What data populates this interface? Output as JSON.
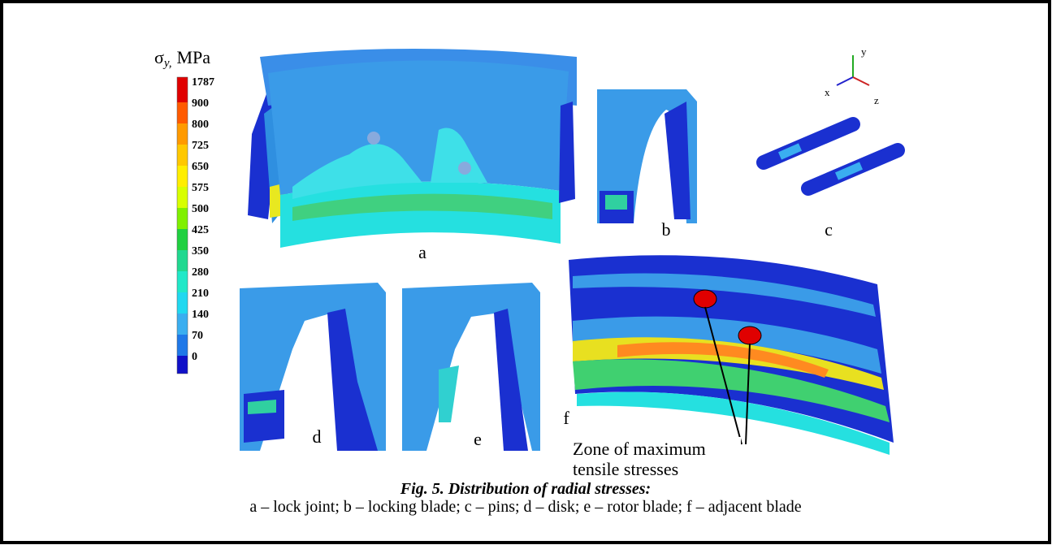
{
  "figure": {
    "legend": {
      "symbol": "σ",
      "subscript": "y,",
      "unit": "MPa",
      "labels": [
        "1787",
        "900",
        "800",
        "725",
        "650",
        "575",
        "500",
        "425",
        "350",
        "280",
        "210",
        "140",
        "70",
        "0"
      ],
      "colors": [
        "#e00000",
        "#ff5a00",
        "#ff9a00",
        "#ffc800",
        "#ffee00",
        "#d8ff00",
        "#80f000",
        "#20d040",
        "#20d890",
        "#20e8c8",
        "#20d8f0",
        "#3aaef0",
        "#1f78e8",
        "#1010c8"
      ]
    },
    "panels": {
      "a": "a",
      "b": "b",
      "c": "c",
      "d": "d",
      "e": "e",
      "f": "f"
    },
    "axes": {
      "x": "x",
      "y": "y",
      "z": "z"
    },
    "annotation": [
      "Zone of maximum",
      "tensile stresses"
    ]
  },
  "caption": {
    "title": "Fig. 5. Distribution of radial stresses:",
    "text": "a – lock joint; b – locking blade; c – pins; d – disk; e – rotor blade; f – adjacent blade"
  }
}
